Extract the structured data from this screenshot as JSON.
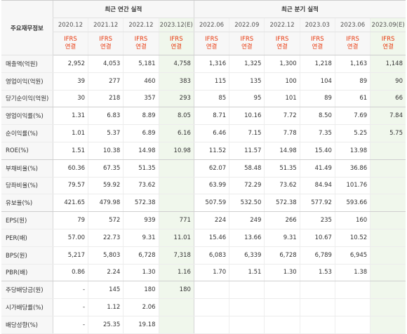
{
  "header": {
    "corner_label": "주요재무정보",
    "annual_group_label": "최근 연간 실적",
    "quarter_group_label": "최근 분기 실적",
    "annual_periods": [
      "2020.12",
      "2021.12",
      "2022.12",
      "2023.12(E)"
    ],
    "quarter_periods": [
      "2022.06",
      "2022.09",
      "2022.12",
      "2023.03",
      "2023.06",
      "2023.09(E)"
    ],
    "basis_line1": "IFRS",
    "basis_line2": "연결"
  },
  "colors": {
    "accent_ifrs": "#e8380d",
    "estimate_bg": "#f0f7ec",
    "label_bg": "#f7f7f7"
  },
  "rows": [
    {
      "label": "매출액(억원)",
      "values": [
        "2,952",
        "4,053",
        "5,181",
        "4,758",
        "1,316",
        "1,325",
        "1,300",
        "1,218",
        "1,163",
        "1,148"
      ]
    },
    {
      "label": "영업이익(억원)",
      "values": [
        "39",
        "277",
        "460",
        "383",
        "115",
        "135",
        "100",
        "104",
        "89",
        "90"
      ]
    },
    {
      "label": "당기순이익(억원)",
      "values": [
        "30",
        "218",
        "357",
        "293",
        "85",
        "95",
        "101",
        "89",
        "61",
        "66"
      ]
    },
    {
      "label": "영업이익률(%)",
      "values": [
        "1.31",
        "6.83",
        "8.89",
        "8.05",
        "8.71",
        "10.16",
        "7.72",
        "8.50",
        "7.69",
        "7.84"
      ]
    },
    {
      "label": "순이익률(%)",
      "values": [
        "1.01",
        "5.37",
        "6.89",
        "6.16",
        "6.46",
        "7.15",
        "7.78",
        "7.35",
        "5.25",
        "5.75"
      ]
    },
    {
      "label": "ROE(%)",
      "values": [
        "1.51",
        "10.38",
        "14.98",
        "10.98",
        "11.52",
        "11.57",
        "14.98",
        "15.40",
        "13.98",
        ""
      ]
    },
    {
      "label": "부채비율(%)",
      "values": [
        "60.36",
        "67.35",
        "51.35",
        "",
        "62.07",
        "58.48",
        "51.35",
        "41.49",
        "36.86",
        ""
      ]
    },
    {
      "label": "당좌비율(%)",
      "values": [
        "79.57",
        "59.92",
        "73.62",
        "",
        "63.99",
        "72.29",
        "73.62",
        "84.94",
        "101.76",
        ""
      ]
    },
    {
      "label": "유보율(%)",
      "values": [
        "421.65",
        "479.98",
        "572.38",
        "",
        "507.59",
        "532.50",
        "572.38",
        "577.92",
        "593.66",
        ""
      ]
    },
    {
      "label": "EPS(원)",
      "values": [
        "79",
        "572",
        "939",
        "771",
        "224",
        "249",
        "266",
        "235",
        "160",
        ""
      ]
    },
    {
      "label": "PER(배)",
      "values": [
        "57.00",
        "22.73",
        "9.31",
        "11.01",
        "15.46",
        "13.66",
        "9.31",
        "10.67",
        "10.52",
        ""
      ]
    },
    {
      "label": "BPS(원)",
      "values": [
        "5,217",
        "5,803",
        "6,728",
        "7,318",
        "6,083",
        "6,339",
        "6,728",
        "6,789",
        "6,945",
        ""
      ]
    },
    {
      "label": "PBR(배)",
      "values": [
        "0.86",
        "2.24",
        "1.30",
        "1.16",
        "1.70",
        "1.51",
        "1.30",
        "1.53",
        "1.38",
        ""
      ]
    },
    {
      "label": "주당배당금(원)",
      "values": [
        "-",
        "145",
        "180",
        "180",
        "",
        "",
        "",
        "",
        "",
        ""
      ]
    },
    {
      "label": "시가배당률(%)",
      "values": [
        "-",
        "1.12",
        "2.06",
        "",
        "",
        "",
        "",
        "",
        "",
        ""
      ]
    },
    {
      "label": "배당성향(%)",
      "values": [
        "-",
        "25.35",
        "19.18",
        "",
        "",
        "",
        "",
        "",
        "",
        ""
      ]
    }
  ]
}
